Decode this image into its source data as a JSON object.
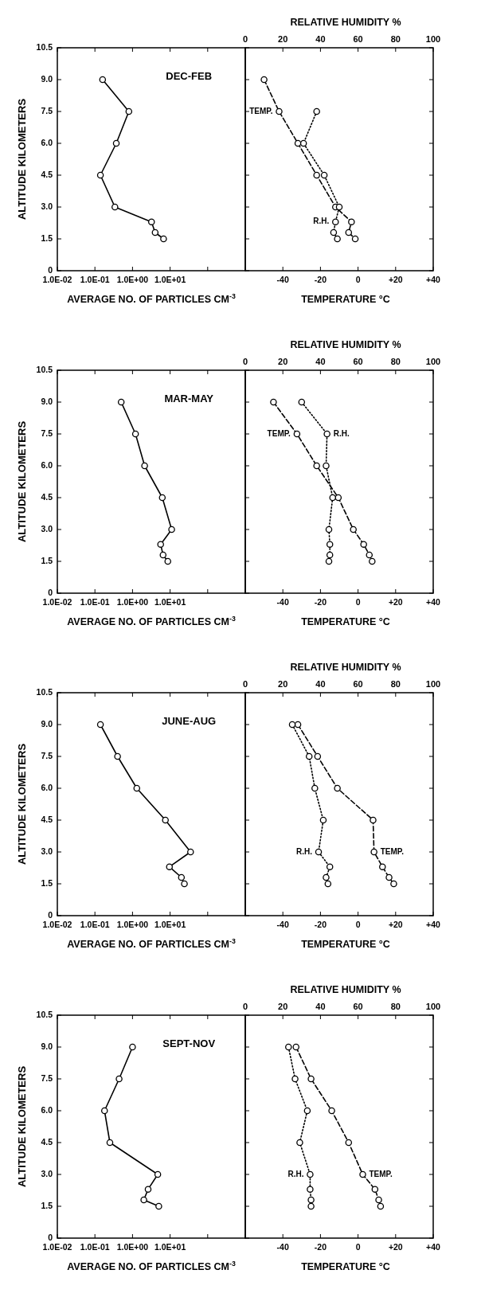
{
  "chart_data": [
    {
      "type": "line",
      "title": "DEC-FEB",
      "xlabel": "AVERAGE NO. OF PARTICLES CM$^{-3}$",
      "ylabel": "ALTITUDE KILOMETERS",
      "log": "x",
      "marker": "circle",
      "xlim": [
        0.01,
        1000
      ],
      "xticks": [
        {
          "value": 0.01,
          "label": "1.0E-02"
        },
        {
          "value": 0.1,
          "label": "1.0E-01"
        },
        {
          "value": 1,
          "label": "1.0E+00"
        },
        {
          "value": 10,
          "label": "1.0E+01"
        },
        {
          "value": 100,
          "label": null
        }
      ],
      "ylim": [
        0,
        10.5
      ],
      "yticks": [
        0,
        1.5,
        {
          "value": 3,
          "label": "3.0"
        },
        4.5,
        {
          "value": 6,
          "label": "6.0"
        },
        7.5,
        {
          "value": 9,
          "label": "9.0"
        },
        10.5
      ],
      "series": [
        {
          "color": "#000000",
          "line_style": "solid",
          "x": [
            0.16,
            0.8,
            0.37,
            0.14,
            0.34,
            3.2,
            4.0,
            6.7
          ],
          "values": [
            9,
            7.5,
            6,
            4.5,
            3,
            2.3,
            1.8,
            1.5
          ]
        }
      ]
    },
    {
      "type": "line",
      "xlabel": "TEMPERATURE °C",
      "x2label": "RELATIVE HUMIDITY %",
      "tick_labels": "x",
      "marker": "circle",
      "xlim": [
        -60,
        40
      ],
      "xticks": [
        {
          "value": -60,
          "label": null
        },
        -40,
        -20,
        0,
        {
          "value": 20,
          "label": "+20"
        },
        {
          "value": 40,
          "label": "+40"
        }
      ],
      "x2lim": [
        0,
        100
      ],
      "x2ticks": [
        0,
        20,
        40,
        60,
        80,
        100
      ],
      "ylim": [
        0,
        10.5
      ],
      "yticks": [
        0,
        1.5,
        3,
        4.5,
        6,
        7.5,
        9,
        10.5
      ],
      "series": [
        {
          "name": "TEMP.",
          "color": "#000000",
          "line_style": "dashed",
          "x": [
            -50,
            -42,
            -32,
            -22,
            -12,
            -3.5,
            -5,
            -1.5
          ],
          "values": [
            9,
            7.5,
            6,
            4.5,
            3,
            2.3,
            1.8,
            1.5
          ]
        },
        {
          "name": "R.H.",
          "axis": "x2",
          "color": "#000000",
          "line_style": "dotted",
          "x": [
            38,
            31,
            42,
            50,
            48,
            47,
            49
          ],
          "values": [
            7.5,
            6,
            4.5,
            3,
            2.3,
            1.8,
            1.5
          ]
        }
      ]
    },
    {
      "type": "line",
      "title": "MAR-MAY",
      "xlabel": "AVERAGE NO. OF PARTICLES CM$^{-3}$",
      "ylabel": "ALTITUDE KILOMETERS",
      "log": "x",
      "marker": "circle",
      "xlim": [
        0.01,
        1000
      ],
      "xticks": [
        {
          "value": 0.01,
          "label": "1.0E-02"
        },
        {
          "value": 0.1,
          "label": "1.0E-01"
        },
        {
          "value": 1,
          "label": "1.0E+00"
        },
        {
          "value": 10,
          "label": "1.0E+01"
        },
        {
          "value": 100,
          "label": null
        }
      ],
      "ylim": [
        0,
        10.5
      ],
      "yticks": [
        0,
        1.5,
        {
          "value": 3,
          "label": "3.0"
        },
        4.5,
        {
          "value": 6,
          "label": "6.0"
        },
        7.5,
        {
          "value": 9,
          "label": "9.0"
        },
        10.5
      ],
      "series": [
        {
          "color": "#000000",
          "line_style": "solid",
          "x": [
            0.5,
            1.2,
            2.1,
            6.2,
            11,
            5.6,
            6.5,
            8.7
          ],
          "values": [
            9,
            7.5,
            6,
            4.5,
            3,
            2.3,
            1.8,
            1.5
          ]
        }
      ]
    },
    {
      "type": "line",
      "xlabel": "TEMPERATURE °C",
      "x2label": "RELATIVE HUMIDITY %",
      "tick_labels": "x",
      "marker": "circle",
      "xlim": [
        -60,
        40
      ],
      "xticks": [
        {
          "value": -60,
          "label": null
        },
        -40,
        -20,
        0,
        {
          "value": 20,
          "label": "+20"
        },
        {
          "value": 40,
          "label": "+40"
        }
      ],
      "x2lim": [
        0,
        100
      ],
      "x2ticks": [
        0,
        20,
        40,
        60,
        80,
        100
      ],
      "ylim": [
        0,
        10.5
      ],
      "yticks": [
        0,
        1.5,
        3,
        4.5,
        6,
        7.5,
        9,
        10.5
      ],
      "series": [
        {
          "name": "TEMP.",
          "color": "#000000",
          "line_style": "dashed",
          "x": [
            -45,
            -32.5,
            -22,
            -10.5,
            -2.5,
            3,
            6,
            7.5
          ],
          "values": [
            9,
            7.5,
            6,
            4.5,
            3,
            2.3,
            1.8,
            1.5
          ]
        },
        {
          "name": "R.H.",
          "axis": "x2",
          "color": "#000000",
          "line_style": "dotted",
          "x": [
            30,
            43.5,
            43,
            46.5,
            44.5,
            45,
            45,
            44.5
          ],
          "values": [
            9,
            7.5,
            6,
            4.5,
            3,
            2.3,
            1.8,
            1.5
          ]
        }
      ]
    },
    {
      "type": "line",
      "title": "JUNE-AUG",
      "xlabel": "AVERAGE NO. OF PARTICLES CM$^{-3}$",
      "ylabel": "ALTITUDE KILOMETERS",
      "log": "x",
      "marker": "circle",
      "xlim": [
        0.01,
        1000
      ],
      "xticks": [
        {
          "value": 0.01,
          "label": "1.0E-02"
        },
        {
          "value": 0.1,
          "label": "1.0E-01"
        },
        {
          "value": 1,
          "label": "1.0E+00"
        },
        {
          "value": 10,
          "label": "1.0E+01"
        },
        {
          "value": 100,
          "label": null
        }
      ],
      "ylim": [
        0,
        10.5
      ],
      "yticks": [
        0,
        1.5,
        {
          "value": 3,
          "label": "3.0"
        },
        4.5,
        {
          "value": 6,
          "label": "6.0"
        },
        7.5,
        {
          "value": 9,
          "label": "9.0"
        },
        10.5
      ],
      "series": [
        {
          "color": "#000000",
          "line_style": "solid",
          "x": [
            0.14,
            0.4,
            1.3,
            7.5,
            35,
            9.6,
            20,
            24
          ],
          "values": [
            9,
            7.5,
            6,
            4.5,
            3,
            2.3,
            1.8,
            1.5
          ]
        }
      ]
    },
    {
      "type": "line",
      "xlabel": "TEMPERATURE °C",
      "x2label": "RELATIVE HUMIDITY %",
      "tick_labels": "x",
      "marker": "circle",
      "xlim": [
        -60,
        40
      ],
      "xticks": [
        {
          "value": -60,
          "label": null
        },
        -40,
        -20,
        0,
        {
          "value": 20,
          "label": "+20"
        },
        {
          "value": 40,
          "label": "+40"
        }
      ],
      "x2lim": [
        0,
        100
      ],
      "x2ticks": [
        0,
        20,
        40,
        60,
        80,
        100
      ],
      "ylim": [
        0,
        10.5
      ],
      "yticks": [
        0,
        1.5,
        3,
        4.5,
        6,
        7.5,
        9,
        10.5
      ],
      "series": [
        {
          "name": "TEMP.",
          "color": "#000000",
          "line_style": "dashed",
          "x": [
            -32,
            -21.5,
            -11,
            8,
            8.5,
            13,
            16.5,
            19
          ],
          "values": [
            9,
            7.5,
            6,
            4.5,
            3,
            2.3,
            1.8,
            1.5
          ]
        },
        {
          "name": "R.H.",
          "axis": "x2",
          "color": "#000000",
          "line_style": "dotted",
          "x": [
            25,
            34,
            37,
            41.5,
            39,
            45,
            43,
            44
          ],
          "values": [
            9,
            7.5,
            6,
            4.5,
            3,
            2.3,
            1.8,
            1.5
          ]
        }
      ]
    },
    {
      "type": "line",
      "title": "SEPT-NOV",
      "xlabel": "AVERAGE NO. OF PARTICLES CM$^{-3}$",
      "ylabel": "ALTITUDE KILOMETERS",
      "log": "x",
      "marker": "circle",
      "xlim": [
        0.01,
        1000
      ],
      "xticks": [
        {
          "value": 0.01,
          "label": "1.0E-02"
        },
        {
          "value": 0.1,
          "label": "1.0E-01"
        },
        {
          "value": 1,
          "label": "1.0E+00"
        },
        {
          "value": 10,
          "label": "1.0E+01"
        },
        {
          "value": 100,
          "label": null
        }
      ],
      "ylim": [
        0,
        10.5
      ],
      "yticks": [
        0,
        1.5,
        {
          "value": 3,
          "label": "3.0"
        },
        4.5,
        {
          "value": 6,
          "label": "6.0"
        },
        7.5,
        {
          "value": 9,
          "label": "9.0"
        },
        10.5
      ],
      "series": [
        {
          "color": "#000000",
          "line_style": "solid",
          "x": [
            1.0,
            0.44,
            0.18,
            0.25,
            4.7,
            2.6,
            2.0,
            5.0
          ],
          "values": [
            9,
            7.5,
            6,
            4.5,
            3,
            2.3,
            1.8,
            1.5
          ]
        }
      ]
    },
    {
      "type": "line",
      "xlabel": "TEMPERATURE °C",
      "x2label": "RELATIVE HUMIDITY %",
      "tick_labels": "x",
      "marker": "circle",
      "xlim": [
        -60,
        40
      ],
      "xticks": [
        {
          "value": -60,
          "label": null
        },
        -40,
        -20,
        0,
        {
          "value": 20,
          "label": "+20"
        },
        {
          "value": 40,
          "label": "+40"
        }
      ],
      "x2lim": [
        0,
        100
      ],
      "x2ticks": [
        0,
        20,
        40,
        60,
        80,
        100
      ],
      "ylim": [
        0,
        10.5
      ],
      "yticks": [
        0,
        1.5,
        3,
        4.5,
        6,
        7.5,
        9,
        10.5
      ],
      "series": [
        {
          "name": "TEMP.",
          "color": "#000000",
          "line_style": "dashed",
          "x": [
            -33,
            -25,
            -14,
            -5,
            2.5,
            9,
            11,
            12
          ],
          "values": [
            9,
            7.5,
            6,
            4.5,
            3,
            2.3,
            1.8,
            1.5
          ]
        },
        {
          "name": "R.H.",
          "axis": "x2",
          "color": "#000000",
          "line_style": "dotted",
          "x": [
            23,
            26.5,
            33,
            29,
            34.5,
            34.5,
            35,
            35
          ],
          "values": [
            9,
            7.5,
            6,
            4.5,
            3,
            2.3,
            1.8,
            1.5
          ]
        }
      ]
    }
  ]
}
